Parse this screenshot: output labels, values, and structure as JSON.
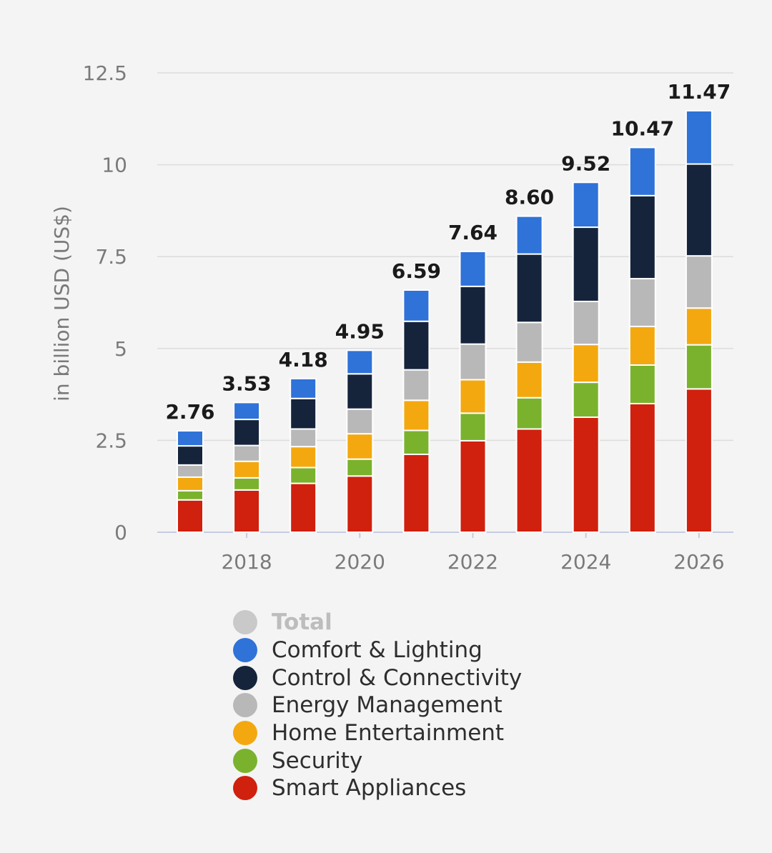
{
  "chart_data": {
    "type": "bar",
    "stacked": true,
    "ylabel": "in billion USD (US$)",
    "ylim": [
      0,
      12.5
    ],
    "yticks": [
      0,
      2.5,
      5,
      7.5,
      10,
      12.5
    ],
    "ytick_labels": [
      "0",
      "2.5",
      "5",
      "7.5",
      "10",
      "12.5"
    ],
    "categories": [
      "2017",
      "2018",
      "2019",
      "2020",
      "2021",
      "2022",
      "2023",
      "2024",
      "2025",
      "2026"
    ],
    "xtick_labels": [
      "2018",
      "2020",
      "2022",
      "2024",
      "2026"
    ],
    "grid": true,
    "legend_position": "bottom",
    "totals": [
      2.76,
      3.53,
      4.18,
      4.95,
      6.59,
      7.64,
      8.6,
      9.52,
      10.47,
      11.47
    ],
    "total_labels": [
      "2.76",
      "3.53",
      "4.18",
      "4.95",
      "6.59",
      "7.64",
      "8.60",
      "9.52",
      "10.47",
      "11.47"
    ],
    "series": [
      {
        "name": "Smart Appliances",
        "color": "#d0200e",
        "values": [
          0.88,
          1.15,
          1.33,
          1.53,
          2.12,
          2.49,
          2.81,
          3.13,
          3.5,
          3.9
        ]
      },
      {
        "name": "Security",
        "color": "#7ab22e",
        "values": [
          0.25,
          0.33,
          0.43,
          0.46,
          0.65,
          0.75,
          0.85,
          0.95,
          1.05,
          1.2
        ]
      },
      {
        "name": "Home Entertainment",
        "color": "#f4a80f",
        "values": [
          0.37,
          0.45,
          0.57,
          0.69,
          0.82,
          0.91,
          0.97,
          1.03,
          1.05,
          1.0
        ]
      },
      {
        "name": "Energy Management",
        "color": "#b8b8b8",
        "values": [
          0.33,
          0.43,
          0.48,
          0.67,
          0.83,
          0.97,
          1.08,
          1.17,
          1.3,
          1.42
        ]
      },
      {
        "name": "Control & Connectivity",
        "color": "#15243b",
        "values": [
          0.52,
          0.71,
          0.83,
          0.96,
          1.32,
          1.57,
          1.86,
          2.02,
          2.26,
          2.5
        ]
      },
      {
        "name": "Comfort & Lighting",
        "color": "#2f72d8",
        "values": [
          0.41,
          0.46,
          0.54,
          0.64,
          0.85,
          0.95,
          1.03,
          1.22,
          1.31,
          1.45
        ]
      }
    ],
    "legend": [
      {
        "name": "Total",
        "color": "#c9c9c9",
        "muted": true
      },
      {
        "name": "Comfort & Lighting",
        "color": "#2f72d8",
        "muted": false
      },
      {
        "name": "Control & Connectivity",
        "color": "#15243b",
        "muted": false
      },
      {
        "name": "Energy Management",
        "color": "#b8b8b8",
        "muted": false
      },
      {
        "name": "Home Entertainment",
        "color": "#f4a80f",
        "muted": false
      },
      {
        "name": "Security",
        "color": "#7ab22e",
        "muted": false
      },
      {
        "name": "Smart Appliances",
        "color": "#d0200e",
        "muted": false
      }
    ]
  }
}
